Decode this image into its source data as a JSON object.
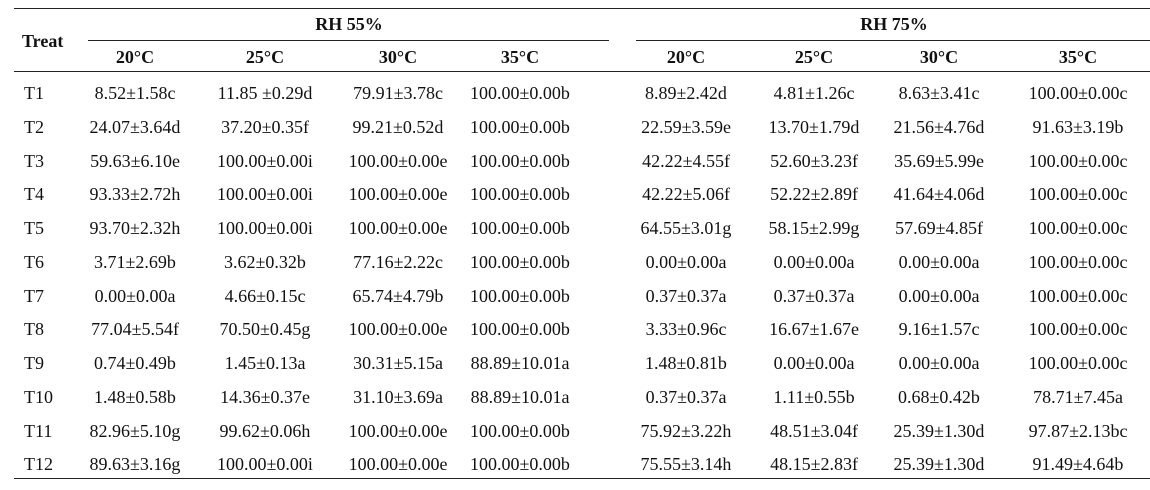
{
  "header": {
    "treat": "Treat",
    "groups": [
      "RH 55%",
      "RH 75%"
    ],
    "temperatures": [
      "20°C",
      "25°C",
      "30°C",
      "35°C",
      "20°C",
      "25°C",
      "30°C",
      "35°C"
    ]
  },
  "rows": [
    {
      "treat": "T1",
      "values": [
        "8.52±1.58c",
        "11.85 ±0.29d",
        "79.91±3.78c",
        "100.00±0.00b",
        "8.89±2.42d",
        "4.81±1.26c",
        "8.63±3.41c",
        "100.00±0.00c"
      ]
    },
    {
      "treat": "T2",
      "values": [
        "24.07±3.64d",
        "37.20±0.35f",
        "99.21±0.52d",
        "100.00±0.00b",
        "22.59±3.59e",
        "13.70±1.79d",
        "21.56±4.76d",
        "91.63±3.19b"
      ]
    },
    {
      "treat": "T3",
      "values": [
        "59.63±6.10e",
        "100.00±0.00i",
        "100.00±0.00e",
        "100.00±0.00b",
        "42.22±4.55f",
        "52.60±3.23f",
        "35.69±5.99e",
        "100.00±0.00c"
      ]
    },
    {
      "treat": "T4",
      "values": [
        "93.33±2.72h",
        "100.00±0.00i",
        "100.00±0.00e",
        "100.00±0.00b",
        "42.22±5.06f",
        "52.22±2.89f",
        "41.64±4.06d",
        "100.00±0.00c"
      ]
    },
    {
      "treat": "T5",
      "values": [
        "93.70±2.32h",
        "100.00±0.00i",
        "100.00±0.00e",
        "100.00±0.00b",
        "64.55±3.01g",
        "58.15±2.99g",
        "57.69±4.85f",
        "100.00±0.00c"
      ]
    },
    {
      "treat": "T6",
      "values": [
        "3.71±2.69b",
        "3.62±0.32b",
        "77.16±2.22c",
        "100.00±0.00b",
        "0.00±0.00a",
        "0.00±0.00a",
        "0.00±0.00a",
        "100.00±0.00c"
      ]
    },
    {
      "treat": "T7",
      "values": [
        "0.00±0.00a",
        "4.66±0.15c",
        "65.74±4.79b",
        "100.00±0.00b",
        "0.37±0.37a",
        "0.37±0.37a",
        "0.00±0.00a",
        "100.00±0.00c"
      ]
    },
    {
      "treat": "T8",
      "values": [
        "77.04±5.54f",
        "70.50±0.45g",
        "100.00±0.00e",
        "100.00±0.00b",
        "3.33±0.96c",
        "16.67±1.67e",
        "9.16±1.57c",
        "100.00±0.00c"
      ]
    },
    {
      "treat": "T9",
      "values": [
        "0.74±0.49b",
        "1.45±0.13a",
        "30.31±5.15a",
        "88.89±10.01a",
        "1.48±0.81b",
        "0.00±0.00a",
        "0.00±0.00a",
        "100.00±0.00c"
      ]
    },
    {
      "treat": "T10",
      "values": [
        "1.48±0.58b",
        "14.36±0.37e",
        "31.10±3.69a",
        "88.89±10.01a",
        "0.37±0.37a",
        "1.11±0.55b",
        "0.68±0.42b",
        "78.71±7.45a"
      ]
    },
    {
      "treat": "T11",
      "values": [
        "82.96±5.10g",
        "99.62±0.06h",
        "100.00±0.00e",
        "100.00±0.00b",
        "75.92±3.22h",
        "48.51±3.04f",
        "25.39±1.30d",
        "97.87±2.13bc"
      ]
    },
    {
      "treat": "T12",
      "values": [
        "89.63±3.16g",
        "100.00±0.00i",
        "100.00±0.00e",
        "100.00±0.00b",
        "75.55±3.14h",
        "48.15±2.83f",
        "25.39±1.30d",
        "91.49±4.64b"
      ]
    }
  ]
}
